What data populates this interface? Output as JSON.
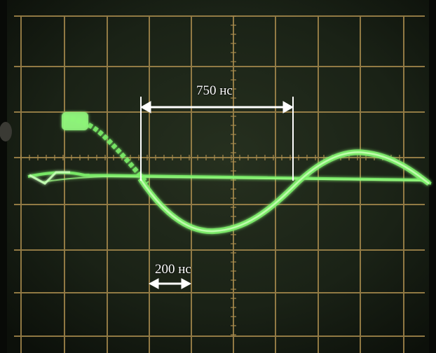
{
  "annotations": {
    "period_label": "750 нс",
    "division_label": "200 нс"
  },
  "colors": {
    "screen": "#1b2318",
    "grid": "#a78a4d",
    "trace": "#7cf06a",
    "trace_glow": "#3fbf3a",
    "annotation": "#ffffff"
  }
}
